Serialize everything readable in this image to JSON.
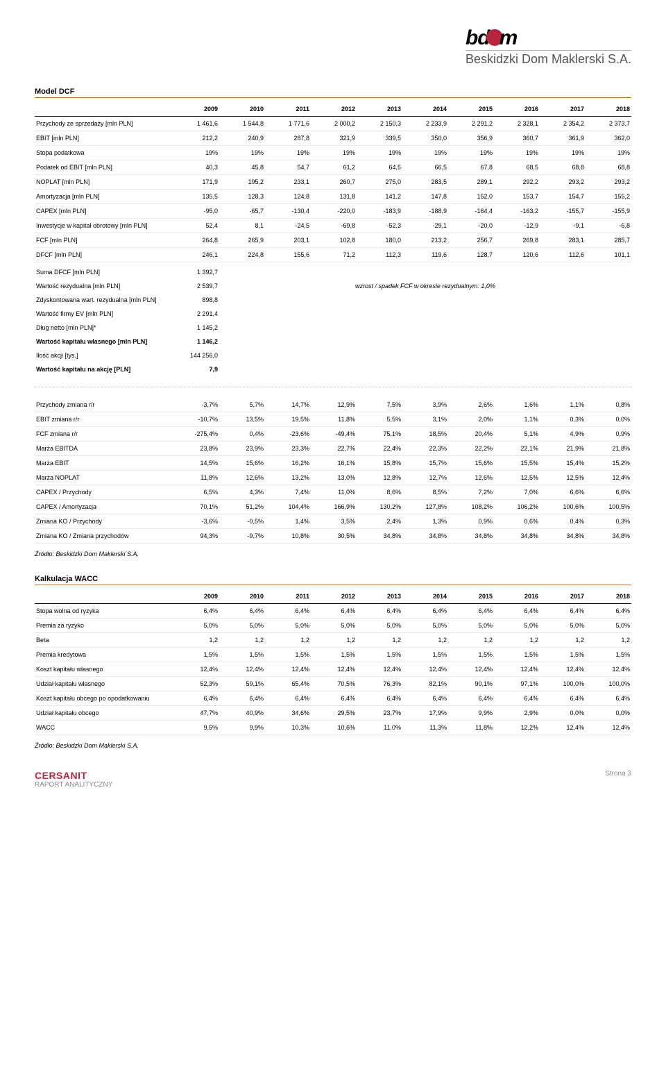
{
  "logo": {
    "top_left": "bd",
    "top_right": "m",
    "sub": "Beskidzki Dom Maklerski S.A."
  },
  "dcf": {
    "title": "Model DCF",
    "years": [
      "2009",
      "2010",
      "2011",
      "2012",
      "2013",
      "2014",
      "2015",
      "2016",
      "2017",
      "2018"
    ],
    "rows": [
      {
        "label": "Przychody ze sprzedaży [mln PLN]",
        "v": [
          "1 461,6",
          "1 544,8",
          "1 771,6",
          "2 000,2",
          "2 150,3",
          "2 233,9",
          "2 291,2",
          "2 328,1",
          "2 354,2",
          "2 373,7"
        ]
      },
      {
        "label": "EBIT [mln PLN]",
        "v": [
          "212,2",
          "240,9",
          "287,8",
          "321,9",
          "339,5",
          "350,0",
          "356,9",
          "360,7",
          "361,9",
          "362,0"
        ]
      },
      {
        "label": "Stopa podatkowa",
        "v": [
          "19%",
          "19%",
          "19%",
          "19%",
          "19%",
          "19%",
          "19%",
          "19%",
          "19%",
          "19%"
        ]
      },
      {
        "label": "Podatek od EBIT [mln PLN]",
        "v": [
          "40,3",
          "45,8",
          "54,7",
          "61,2",
          "64,5",
          "66,5",
          "67,8",
          "68,5",
          "68,8",
          "68,8"
        ]
      },
      {
        "label": "NOPLAT [mln PLN]",
        "v": [
          "171,9",
          "195,2",
          "233,1",
          "260,7",
          "275,0",
          "283,5",
          "289,1",
          "292,2",
          "293,2",
          "293,2"
        ]
      },
      {
        "label": "Amortyzacja [mln PLN]",
        "v": [
          "135,5",
          "128,3",
          "124,8",
          "131,8",
          "141,2",
          "147,8",
          "152,0",
          "153,7",
          "154,7",
          "155,2"
        ]
      },
      {
        "label": "CAPEX [mln PLN]",
        "v": [
          "-95,0",
          "-65,7",
          "-130,4",
          "-220,0",
          "-183,9",
          "-188,9",
          "-164,4",
          "-163,2",
          "-155,7",
          "-155,9"
        ]
      },
      {
        "label": "Inwestycje w kapitał obrotowy [mln PLN]",
        "v": [
          "52,4",
          "8,1",
          "-24,5",
          "-69,8",
          "-52,3",
          "-29,1",
          "-20,0",
          "-12,9",
          "-9,1",
          "-6,8"
        ]
      },
      {
        "label": "FCF [mln PLN]",
        "v": [
          "264,8",
          "265,9",
          "203,1",
          "102,8",
          "180,0",
          "213,2",
          "256,7",
          "269,8",
          "283,1",
          "285,7"
        ]
      },
      {
        "label": "DFCF [mln PLN]",
        "v": [
          "246,1",
          "224,8",
          "155,6",
          "71,2",
          "112,3",
          "119,6",
          "128,7",
          "120,6",
          "112,6",
          "101,1"
        ]
      }
    ],
    "summary": [
      {
        "label": "Suma DFCF [mln PLN]",
        "v": "1 392,7"
      },
      {
        "label": "Wartość rezydualna [mln PLN]",
        "v": "2 539,7",
        "note": "wzrost / spadek FCF w okresie rezydualnym:  1,0%"
      },
      {
        "label": "Zdyskontowana wart. rezydualna [mln PLN]",
        "v": "898,8"
      },
      {
        "label": "Wartość firmy EV [mln PLN]",
        "v": "2 291,4"
      },
      {
        "label": "Dług netto [mln PLN]*",
        "v": "1 145,2"
      },
      {
        "label": "Wartość kapitału własnego [mln PLN]",
        "v": "1 146,2",
        "bold": true
      },
      {
        "label": "Ilość akcji [tys.]",
        "v": "144 256,0"
      },
      {
        "label": "Wartość kapitału na akcję [PLN]",
        "v": "7,9",
        "bold": true
      }
    ]
  },
  "ratios": {
    "rows": [
      {
        "label": "Przychody zmiana r/r",
        "v": [
          "-3,7%",
          "5,7%",
          "14,7%",
          "12,9%",
          "7,5%",
          "3,9%",
          "2,6%",
          "1,6%",
          "1,1%",
          "0,8%"
        ]
      },
      {
        "label": "EBIT zmiana r/r",
        "v": [
          "-10,7%",
          "13,5%",
          "19,5%",
          "11,8%",
          "5,5%",
          "3,1%",
          "2,0%",
          "1,1%",
          "0,3%",
          "0,0%"
        ]
      },
      {
        "label": "FCF zmiana r/r",
        "v": [
          "-275,4%",
          "0,4%",
          "-23,6%",
          "-49,4%",
          "75,1%",
          "18,5%",
          "20,4%",
          "5,1%",
          "4,9%",
          "0,9%"
        ]
      },
      {
        "label": "Marża EBITDA",
        "v": [
          "23,8%",
          "23,9%",
          "23,3%",
          "22,7%",
          "22,4%",
          "22,3%",
          "22,2%",
          "22,1%",
          "21,9%",
          "21,8%"
        ]
      },
      {
        "label": "Marża EBIT",
        "v": [
          "14,5%",
          "15,6%",
          "16,2%",
          "16,1%",
          "15,8%",
          "15,7%",
          "15,6%",
          "15,5%",
          "15,4%",
          "15,2%"
        ]
      },
      {
        "label": "Marża NOPLAT",
        "v": [
          "11,8%",
          "12,6%",
          "13,2%",
          "13,0%",
          "12,8%",
          "12,7%",
          "12,6%",
          "12,5%",
          "12,5%",
          "12,4%"
        ]
      },
      {
        "label": "CAPEX / Przychody",
        "v": [
          "6,5%",
          "4,3%",
          "7,4%",
          "11,0%",
          "8,6%",
          "8,5%",
          "7,2%",
          "7,0%",
          "6,6%",
          "6,6%"
        ]
      },
      {
        "label": "CAPEX / Amortyzacja",
        "v": [
          "70,1%",
          "51,2%",
          "104,4%",
          "166,9%",
          "130,2%",
          "127,8%",
          "108,2%",
          "106,2%",
          "100,6%",
          "100,5%"
        ]
      },
      {
        "label": "Zmiana KO / Przychody",
        "v": [
          "-3,6%",
          "-0,5%",
          "1,4%",
          "3,5%",
          "2,4%",
          "1,3%",
          "0,9%",
          "0,6%",
          "0,4%",
          "0,3%"
        ]
      },
      {
        "label": "Zmiana KO / Zmiana przychodów",
        "v": [
          "94,3%",
          "-9,7%",
          "10,8%",
          "30,5%",
          "34,8%",
          "34,8%",
          "34,8%",
          "34,8%",
          "34,8%",
          "34,8%"
        ]
      }
    ]
  },
  "wacc": {
    "title": "Kalkulacja WACC",
    "years": [
      "2009",
      "2010",
      "2011",
      "2012",
      "2013",
      "2014",
      "2015",
      "2016",
      "2017",
      "2018"
    ],
    "rows": [
      {
        "label": "Stopa wolna od ryzyka",
        "v": [
          "6,4%",
          "6,4%",
          "6,4%",
          "6,4%",
          "6,4%",
          "6,4%",
          "6,4%",
          "6,4%",
          "6,4%",
          "6,4%"
        ]
      },
      {
        "label": "Premia za ryzyko",
        "v": [
          "5,0%",
          "5,0%",
          "5,0%",
          "5,0%",
          "5,0%",
          "5,0%",
          "5,0%",
          "5,0%",
          "5,0%",
          "5,0%"
        ]
      },
      {
        "label": "Beta",
        "v": [
          "1,2",
          "1,2",
          "1,2",
          "1,2",
          "1,2",
          "1,2",
          "1,2",
          "1,2",
          "1,2",
          "1,2"
        ]
      },
      {
        "label": "Premia kredytowa",
        "v": [
          "1,5%",
          "1,5%",
          "1,5%",
          "1,5%",
          "1,5%",
          "1,5%",
          "1,5%",
          "1,5%",
          "1,5%",
          "1,5%"
        ]
      },
      {
        "label": "Koszt kapitału własnego",
        "v": [
          "12,4%",
          "12,4%",
          "12,4%",
          "12,4%",
          "12,4%",
          "12,4%",
          "12,4%",
          "12,4%",
          "12,4%",
          "12,4%"
        ]
      },
      {
        "label": "Udział kapitału własnego",
        "v": [
          "52,3%",
          "59,1%",
          "65,4%",
          "70,5%",
          "76,3%",
          "82,1%",
          "90,1%",
          "97,1%",
          "100,0%",
          "100,0%"
        ]
      },
      {
        "label": "Koszt kapitału obcego po opodatkowaniu",
        "v": [
          "6,4%",
          "6,4%",
          "6,4%",
          "6,4%",
          "6,4%",
          "6,4%",
          "6,4%",
          "6,4%",
          "6,4%",
          "6,4%"
        ]
      },
      {
        "label": "Udział kapitału obcego",
        "v": [
          "47,7%",
          "40,9%",
          "34,6%",
          "29,5%",
          "23,7%",
          "17,9%",
          "9,9%",
          "2,9%",
          "0,0%",
          "0,0%"
        ]
      },
      {
        "label": "WACC",
        "v": [
          "9,5%",
          "9,9%",
          "10,3%",
          "10,6%",
          "11,0%",
          "11,3%",
          "11,8%",
          "12,2%",
          "12,4%",
          "12,4%"
        ]
      }
    ]
  },
  "source": "Źródło: Beskidzki Dom Maklerski S.A.",
  "footer": {
    "brand": "CERSANIT",
    "sub": "RAPORT ANALITYCZNY",
    "page": "Strona 3"
  }
}
